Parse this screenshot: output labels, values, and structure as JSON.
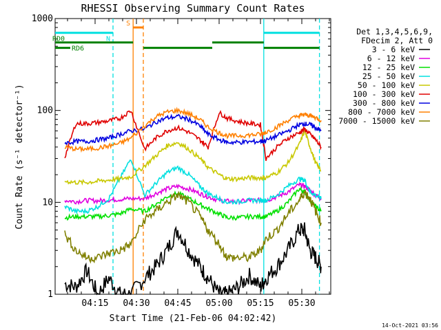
{
  "chart_data": {
    "type": "line",
    "title": "RHESSI Observing Summary Count Rates",
    "xlabel": "Start Time (21-Feb-06 04:02:42)",
    "ylabel": "Count Rate (s⁻¹ detector⁻¹)",
    "footer": "14-Oct-2021 03:56",
    "yscale": "log",
    "ylim": [
      1,
      1000
    ],
    "xlim_minutes": [
      4.0,
      40.3
    ],
    "xticks": [
      {
        "min": 15,
        "label": "04:15"
      },
      {
        "min": 30,
        "label": "04:30"
      },
      {
        "min": 45,
        "label": "04:45"
      },
      {
        "min": 60,
        "label": "05:00"
      },
      {
        "min": 75,
        "label": "05:15"
      },
      {
        "min": 90,
        "label": "05:30"
      }
    ],
    "yticks": [
      {
        "value": 1,
        "label": "1"
      },
      {
        "value": 10,
        "label": "10"
      },
      {
        "value": 100,
        "label": "100"
      },
      {
        "value": 1000,
        "label": "1000"
      }
    ],
    "legend": {
      "header": [
        "Det 1,3,4,5,6,9,",
        "FDecim 2, Att 0"
      ],
      "placement": "right"
    },
    "series": [
      {
        "name": "3 - 6 keV",
        "color": "#000000",
        "points": [
          [
            4,
            1.3
          ],
          [
            8,
            1.2
          ],
          [
            12,
            1.8
          ],
          [
            16,
            1.0
          ],
          [
            20,
            1.5
          ],
          [
            24,
            1.0
          ],
          [
            28,
            1.0
          ],
          [
            33,
            1.5
          ],
          [
            37,
            2.0
          ],
          [
            41,
            3.0
          ],
          [
            45,
            5.0
          ],
          [
            49,
            3.0
          ],
          [
            53,
            2.0
          ],
          [
            56,
            1.5
          ],
          [
            60,
            1.0
          ],
          [
            63,
            1.0
          ],
          [
            67,
            1.2
          ],
          [
            71,
            1.6
          ],
          [
            75,
            1.2
          ],
          [
            77,
            1.5
          ],
          [
            81,
            2.0
          ],
          [
            85,
            3.0
          ],
          [
            89,
            5.0
          ],
          [
            91,
            5.0
          ],
          [
            93,
            3.0
          ],
          [
            95,
            2.5
          ],
          [
            97,
            2.0
          ]
        ]
      },
      {
        "name": "6 - 12 keV",
        "color": "#e000e0",
        "points": [
          [
            4,
            10.5
          ],
          [
            8,
            10.2
          ],
          [
            12,
            10.5
          ],
          [
            16,
            10.4
          ],
          [
            20,
            10.6
          ],
          [
            24,
            10.8
          ],
          [
            28,
            11.0
          ],
          [
            33,
            11.0
          ],
          [
            37,
            12.5
          ],
          [
            41,
            14.0
          ],
          [
            45,
            15.0
          ],
          [
            49,
            14.0
          ],
          [
            53,
            12.5
          ],
          [
            56,
            11.5
          ],
          [
            60,
            10.5
          ],
          [
            63,
            10.3
          ],
          [
            67,
            10.2
          ],
          [
            71,
            10.5
          ],
          [
            75,
            10.5
          ],
          [
            77,
            10.5
          ],
          [
            81,
            11.5
          ],
          [
            85,
            13.0
          ],
          [
            89,
            15.5
          ],
          [
            91,
            15.0
          ],
          [
            93,
            13.5
          ],
          [
            95,
            12.0
          ],
          [
            97,
            11.0
          ]
        ]
      },
      {
        "name": "12 - 25 keV",
        "color": "#00e000",
        "points": [
          [
            4,
            6.8
          ],
          [
            8,
            7.0
          ],
          [
            12,
            7.0
          ],
          [
            16,
            7.0
          ],
          [
            20,
            7.2
          ],
          [
            24,
            7.5
          ],
          [
            28,
            8.5
          ],
          [
            33,
            8.0
          ],
          [
            37,
            9.5
          ],
          [
            41,
            11.5
          ],
          [
            45,
            12.5
          ],
          [
            49,
            11.0
          ],
          [
            53,
            9.5
          ],
          [
            56,
            8.5
          ],
          [
            60,
            7.5
          ],
          [
            63,
            6.8
          ],
          [
            67,
            6.8
          ],
          [
            71,
            7.0
          ],
          [
            75,
            7.0
          ],
          [
            77,
            7.0
          ],
          [
            81,
            8.0
          ],
          [
            85,
            10.0
          ],
          [
            89,
            14.0
          ],
          [
            91,
            13.0
          ],
          [
            93,
            10.5
          ],
          [
            95,
            9.0
          ],
          [
            97,
            8.0
          ]
        ]
      },
      {
        "name": "25 - 50 keV",
        "color": "#00e0e0",
        "points": [
          [
            4,
            9.0
          ],
          [
            8,
            8.0
          ],
          [
            12,
            8.0
          ],
          [
            16,
            9.0
          ],
          [
            20,
            11.0
          ],
          [
            24,
            18.0
          ],
          [
            28,
            30.0
          ],
          [
            33,
            12.0
          ],
          [
            37,
            16.0
          ],
          [
            41,
            21.0
          ],
          [
            45,
            24.0
          ],
          [
            49,
            20.0
          ],
          [
            53,
            15.0
          ],
          [
            56,
            12.5
          ],
          [
            60,
            11.0
          ],
          [
            63,
            10.0
          ],
          [
            67,
            10.2
          ],
          [
            71,
            10.5
          ],
          [
            75,
            10.5
          ],
          [
            77,
            10.5
          ],
          [
            81,
            12.0
          ],
          [
            85,
            15.0
          ],
          [
            89,
            18.0
          ],
          [
            91,
            17.5
          ],
          [
            93,
            13.0
          ],
          [
            95,
            12.0
          ],
          [
            97,
            11.0
          ]
        ]
      },
      {
        "name": "50 - 100 keV",
        "color": "#c8c800",
        "points": [
          [
            4,
            17.0
          ],
          [
            8,
            16.5
          ],
          [
            12,
            16.5
          ],
          [
            16,
            17.0
          ],
          [
            20,
            17.5
          ],
          [
            24,
            18.0
          ],
          [
            28,
            19.0
          ],
          [
            33,
            25.0
          ],
          [
            37,
            32.0
          ],
          [
            41,
            41.0
          ],
          [
            45,
            45.0
          ],
          [
            49,
            38.0
          ],
          [
            53,
            30.0
          ],
          [
            56,
            24.0
          ],
          [
            60,
            20.0
          ],
          [
            63,
            18.0
          ],
          [
            67,
            18.0
          ],
          [
            71,
            18.5
          ],
          [
            75,
            18.5
          ],
          [
            77,
            18.5
          ],
          [
            81,
            21.0
          ],
          [
            85,
            27.0
          ],
          [
            89,
            42.0
          ],
          [
            91,
            60.0
          ],
          [
            93,
            40.0
          ],
          [
            95,
            27.0
          ],
          [
            97,
            22.0
          ]
        ]
      },
      {
        "name": "100 - 300 keV",
        "color": "#e00000",
        "points": [
          [
            4,
            31.0
          ],
          [
            8,
            72.0
          ],
          [
            12,
            72.0
          ],
          [
            16,
            74.0
          ],
          [
            20,
            77.0
          ],
          [
            24,
            82.0
          ],
          [
            28,
            100.0
          ],
          [
            33,
            38.0
          ],
          [
            37,
            50.0
          ],
          [
            41,
            60.0
          ],
          [
            45,
            65.0
          ],
          [
            49,
            58.0
          ],
          [
            53,
            48.0
          ],
          [
            56,
            40.0
          ],
          [
            60,
            95.0
          ],
          [
            63,
            82.0
          ],
          [
            67,
            76.0
          ],
          [
            71,
            72.0
          ],
          [
            75,
            70.0
          ],
          [
            77,
            30.0
          ],
          [
            81,
            40.0
          ],
          [
            85,
            50.0
          ],
          [
            89,
            57.0
          ],
          [
            91,
            63.0
          ],
          [
            93,
            55.0
          ],
          [
            95,
            48.0
          ],
          [
            97,
            40.0
          ]
        ]
      },
      {
        "name": "300 - 800 keV",
        "color": "#0000e0",
        "points": [
          [
            4,
            44.0
          ],
          [
            8,
            46.0
          ],
          [
            12,
            46.0
          ],
          [
            16,
            48.0
          ],
          [
            20,
            50.0
          ],
          [
            24,
            55.0
          ],
          [
            28,
            60.0
          ],
          [
            33,
            63.0
          ],
          [
            37,
            75.0
          ],
          [
            41,
            83.0
          ],
          [
            45,
            86.0
          ],
          [
            49,
            80.0
          ],
          [
            53,
            68.0
          ],
          [
            56,
            55.0
          ],
          [
            60,
            48.0
          ],
          [
            63,
            45.0
          ],
          [
            67,
            45.0
          ],
          [
            71,
            45.5
          ],
          [
            75,
            46.0
          ],
          [
            77,
            47.0
          ],
          [
            81,
            53.0
          ],
          [
            85,
            60.0
          ],
          [
            89,
            70.0
          ],
          [
            91,
            72.0
          ],
          [
            93,
            70.0
          ],
          [
            95,
            65.0
          ],
          [
            97,
            60.0
          ]
        ]
      },
      {
        "name": "800 - 7000 keV",
        "color": "#ff8000",
        "points": [
          [
            4,
            40.0
          ],
          [
            8,
            38.0
          ],
          [
            12,
            38.0
          ],
          [
            16,
            39.0
          ],
          [
            20,
            41.0
          ],
          [
            24,
            44.0
          ],
          [
            28,
            50.0
          ],
          [
            33,
            68.0
          ],
          [
            37,
            85.0
          ],
          [
            41,
            96.0
          ],
          [
            45,
            100.0
          ],
          [
            49,
            92.0
          ],
          [
            53,
            80.0
          ],
          [
            56,
            66.0
          ],
          [
            60,
            57.0
          ],
          [
            63,
            53.0
          ],
          [
            67,
            53.0
          ],
          [
            71,
            54.0
          ],
          [
            75,
            55.0
          ],
          [
            77,
            58.0
          ],
          [
            81,
            66.0
          ],
          [
            85,
            78.0
          ],
          [
            89,
            88.0
          ],
          [
            91,
            90.0
          ],
          [
            93,
            88.0
          ],
          [
            95,
            84.0
          ],
          [
            97,
            78.0
          ]
        ]
      },
      {
        "name": "7000 - 15000 keV",
        "color": "#808000",
        "points": [
          [
            4,
            4.5
          ],
          [
            8,
            3.0
          ],
          [
            12,
            2.5
          ],
          [
            16,
            2.5
          ],
          [
            20,
            2.8
          ],
          [
            24,
            3.0
          ],
          [
            28,
            3.5
          ],
          [
            33,
            6.5
          ],
          [
            37,
            8.0
          ],
          [
            41,
            10.0
          ],
          [
            45,
            12.0
          ],
          [
            49,
            10.0
          ],
          [
            53,
            7.0
          ],
          [
            56,
            5.0
          ],
          [
            60,
            3.5
          ],
          [
            63,
            2.5
          ],
          [
            67,
            2.5
          ],
          [
            71,
            2.5
          ],
          [
            75,
            3.0
          ],
          [
            77,
            4.0
          ],
          [
            81,
            5.0
          ],
          [
            85,
            7.5
          ],
          [
            89,
            10.5
          ],
          [
            91,
            13.0
          ],
          [
            93,
            11.0
          ],
          [
            95,
            8.0
          ],
          [
            97,
            6.0
          ]
        ]
      }
    ],
    "markers": {
      "vlines": [
        {
          "min": 21.5,
          "color": "#00e0e0",
          "style": "dash"
        },
        {
          "min": 28.8,
          "color": "#ff8000",
          "style": "solid"
        },
        {
          "min": 32.5,
          "color": "#ff8000",
          "style": "dash"
        },
        {
          "min": 76.2,
          "color": "#00e0e0",
          "style": "solid"
        },
        {
          "min": 96.4,
          "color": "#00e0e0",
          "style": "dash"
        }
      ],
      "bars": [
        {
          "from": 0.5,
          "to": 21.5,
          "value": 700,
          "color": "#00e0e0",
          "label": "N"
        },
        {
          "from": 76.2,
          "to": 96.4,
          "value": 700,
          "color": "#00e0e0",
          "label": ""
        },
        {
          "from": 28.8,
          "to": 32.5,
          "value": 800,
          "color": "#ff8000",
          "label": "S"
        },
        {
          "from": 0.5,
          "to": 28.8,
          "value": 550,
          "color": "#008000",
          "label": "RD0"
        },
        {
          "from": 32.5,
          "to": 57.5,
          "value": 480,
          "color": "#008000",
          "label": ""
        },
        {
          "from": 57.5,
          "to": 76.2,
          "value": 550,
          "color": "#008000",
          "label": ""
        },
        {
          "from": 76.2,
          "to": 96.4,
          "value": 480,
          "color": "#008000",
          "label": ""
        },
        {
          "from": 0.5,
          "to": 6.0,
          "value": 480,
          "color": "#008000",
          "label": "RD6"
        }
      ]
    }
  }
}
